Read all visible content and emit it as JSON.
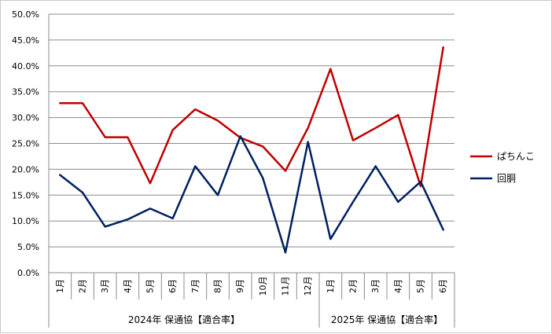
{
  "chart_data": {
    "type": "line",
    "title": "",
    "xlabel": "",
    "ylabel": "",
    "ylim": [
      0,
      50
    ],
    "y_unit": "%",
    "yticks": [
      "0.0%",
      "5.0%",
      "10.0%",
      "15.0%",
      "20.0%",
      "25.0%",
      "30.0%",
      "35.0%",
      "40.0%",
      "45.0%",
      "50.0%"
    ],
    "grid": true,
    "legend_position": "right",
    "categories": [
      "1月",
      "2月",
      "3月",
      "4月",
      "5月",
      "6月",
      "7月",
      "8月",
      "9月",
      "10月",
      "11月",
      "12月",
      "1月",
      "2月",
      "3月",
      "4月",
      "5月",
      "6月"
    ],
    "groups": [
      {
        "label": "2024年 保通協【適合率】",
        "count": 12
      },
      {
        "label": "2025年 保通協【適合率】",
        "count": 6
      }
    ],
    "series": [
      {
        "name": "ぱちんこ",
        "color": "#c00000",
        "values": [
          32.8,
          32.8,
          26.2,
          26.2,
          17.3,
          27.6,
          31.6,
          29.4,
          26.1,
          24.4,
          19.7,
          28.0,
          39.4,
          25.6,
          28.0,
          30.5,
          16.7,
          43.6
        ]
      },
      {
        "name": "回胴",
        "color": "#002060",
        "values": [
          18.9,
          15.5,
          8.9,
          10.3,
          12.4,
          10.5,
          20.6,
          15.0,
          26.4,
          18.3,
          3.9,
          25.3,
          6.5,
          13.7,
          20.6,
          13.7,
          17.6,
          8.3
        ]
      }
    ]
  }
}
